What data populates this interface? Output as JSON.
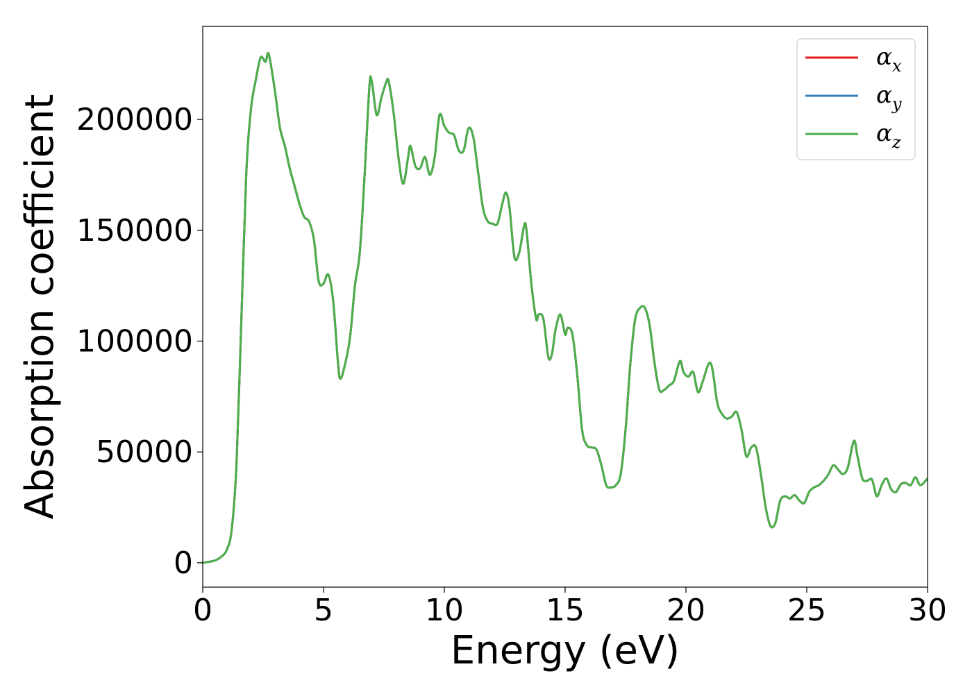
{
  "chart_data": {
    "type": "line",
    "title": "",
    "xlabel": "Energy (eV)",
    "ylabel": "Absorption coefficient",
    "xlim": [
      0,
      30
    ],
    "ylim": [
      -11000,
      242000
    ],
    "xticks": [
      0,
      5,
      10,
      15,
      20,
      25,
      30
    ],
    "xtick_labels": [
      "0",
      "5",
      "10",
      "15",
      "20",
      "25",
      "30"
    ],
    "yticks": [
      0,
      50000,
      100000,
      150000,
      200000
    ],
    "ytick_labels": [
      "0",
      "50000",
      "100000",
      "150000",
      "200000"
    ],
    "grid": false,
    "legend_position": "top-right",
    "x": [
      0,
      0.5,
      0.8,
      1.0,
      1.2,
      1.4,
      1.6,
      1.8,
      2.0,
      2.2,
      2.4,
      2.6,
      2.7,
      2.8,
      3.0,
      3.2,
      3.4,
      3.6,
      3.8,
      4.0,
      4.2,
      4.4,
      4.6,
      4.8,
      5.0,
      5.2,
      5.4,
      5.6,
      5.7,
      5.9,
      6.1,
      6.3,
      6.5,
      6.7,
      6.9,
      7.0,
      7.2,
      7.4,
      7.6,
      7.7,
      7.9,
      8.1,
      8.3,
      8.5,
      8.6,
      8.8,
      9.0,
      9.2,
      9.4,
      9.6,
      9.8,
      10.0,
      10.2,
      10.4,
      10.6,
      10.8,
      11.0,
      11.2,
      11.4,
      11.6,
      11.8,
      12.0,
      12.2,
      12.4,
      12.55,
      12.7,
      12.9,
      13.1,
      13.3,
      13.4,
      13.6,
      13.8,
      13.9,
      14.1,
      14.3,
      14.45,
      14.6,
      14.8,
      15.0,
      15.1,
      15.3,
      15.5,
      15.7,
      15.9,
      16.1,
      16.3,
      16.5,
      16.7,
      16.9,
      17.1,
      17.3,
      17.5,
      17.7,
      17.9,
      18.1,
      18.3,
      18.5,
      18.7,
      18.9,
      19.1,
      19.3,
      19.5,
      19.75,
      19.9,
      20.1,
      20.3,
      20.5,
      20.7,
      20.95,
      21.1,
      21.3,
      21.5,
      21.7,
      21.9,
      22.1,
      22.3,
      22.5,
      22.7,
      22.9,
      23.1,
      23.3,
      23.5,
      23.7,
      23.9,
      24.1,
      24.3,
      24.5,
      24.7,
      24.9,
      25.1,
      25.3,
      25.5,
      25.7,
      25.9,
      26.1,
      26.3,
      26.5,
      26.7,
      26.95,
      27.1,
      27.3,
      27.5,
      27.7,
      27.9,
      28.1,
      28.3,
      28.5,
      28.7,
      28.9,
      29.1,
      29.3,
      29.5,
      29.7,
      30.0
    ],
    "series": [
      {
        "name": "α_x",
        "color": "#e41a1c",
        "values": [
          0,
          1000,
          3000,
          6000,
          15000,
          45000,
          110000,
          175000,
          205000,
          218000,
          228000,
          226000,
          230000,
          226000,
          212000,
          196000,
          188000,
          178000,
          170000,
          162000,
          156000,
          154000,
          146000,
          127000,
          126000,
          130000,
          118000,
          90000,
          83000,
          90000,
          102000,
          125000,
          140000,
          175000,
          215000,
          217000,
          202000,
          210000,
          217000,
          217000,
          203000,
          183000,
          171000,
          183000,
          188000,
          179000,
          178000,
          183000,
          175000,
          183000,
          202000,
          197000,
          194000,
          193000,
          186000,
          186000,
          196000,
          192000,
          176000,
          160000,
          154000,
          153000,
          153000,
          162000,
          167000,
          160000,
          138000,
          140000,
          152000,
          150000,
          126000,
          110000,
          112000,
          110000,
          93000,
          94000,
          105000,
          112000,
          103000,
          106000,
          103000,
          85000,
          60000,
          53000,
          52000,
          51000,
          44000,
          35000,
          34000,
          35000,
          40000,
          60000,
          90000,
          110000,
          115000,
          115000,
          107000,
          90000,
          78000,
          78000,
          80000,
          82000,
          91000,
          86000,
          84000,
          86000,
          77000,
          82000,
          90000,
          87000,
          72000,
          67000,
          65000,
          66000,
          68000,
          60000,
          48000,
          52000,
          52000,
          40000,
          25000,
          16500,
          18000,
          28000,
          30000,
          29000,
          30500,
          28000,
          27000,
          32000,
          34000,
          35000,
          37000,
          40000,
          44000,
          42000,
          40000,
          43000,
          55000,
          48000,
          38000,
          37000,
          37500,
          30000,
          35000,
          38000,
          33000,
          32000,
          35500,
          36000,
          35000,
          38500,
          35000,
          38000
        ]
      },
      {
        "name": "α_y",
        "color": "#377eb8",
        "values": [
          0,
          1000,
          3000,
          6000,
          15000,
          45000,
          110000,
          175000,
          205000,
          218000,
          228000,
          226000,
          230000,
          226000,
          212000,
          196000,
          188000,
          178000,
          170000,
          162000,
          156000,
          154000,
          146000,
          127000,
          126000,
          130000,
          118000,
          90000,
          83000,
          90000,
          102000,
          125000,
          140000,
          175000,
          215000,
          217000,
          202000,
          210000,
          217000,
          217000,
          203000,
          183000,
          171000,
          183000,
          188000,
          179000,
          178000,
          183000,
          175000,
          183000,
          202000,
          197000,
          194000,
          193000,
          186000,
          186000,
          196000,
          192000,
          176000,
          160000,
          154000,
          153000,
          153000,
          162000,
          167000,
          160000,
          138000,
          140000,
          152000,
          150000,
          126000,
          110000,
          112000,
          110000,
          93000,
          94000,
          105000,
          112000,
          103000,
          106000,
          103000,
          85000,
          60000,
          53000,
          52000,
          51000,
          44000,
          35000,
          34000,
          35000,
          40000,
          60000,
          90000,
          110000,
          115000,
          115000,
          107000,
          90000,
          78000,
          78000,
          80000,
          82000,
          91000,
          86000,
          84000,
          86000,
          77000,
          82000,
          90000,
          87000,
          72000,
          67000,
          65000,
          66000,
          68000,
          60000,
          48000,
          52000,
          52000,
          40000,
          25000,
          16500,
          18000,
          28000,
          30000,
          29000,
          30500,
          28000,
          27000,
          32000,
          34000,
          35000,
          37000,
          40000,
          44000,
          42000,
          40000,
          43000,
          55000,
          48000,
          38000,
          37000,
          37500,
          30000,
          35000,
          38000,
          33000,
          32000,
          35500,
          36000,
          35000,
          38500,
          35000,
          38000
        ]
      },
      {
        "name": "α_z",
        "color": "#4daf4a",
        "values": [
          0,
          1000,
          3000,
          6000,
          15000,
          45000,
          110000,
          175000,
          205000,
          218000,
          228000,
          226000,
          230000,
          226000,
          212000,
          196000,
          188000,
          178000,
          170000,
          162000,
          156000,
          154000,
          146000,
          127000,
          126000,
          130000,
          118000,
          90000,
          83000,
          90000,
          102000,
          125000,
          140000,
          175000,
          215000,
          217000,
          202000,
          210000,
          217000,
          217000,
          203000,
          183000,
          171000,
          183000,
          188000,
          179000,
          178000,
          183000,
          175000,
          183000,
          202000,
          197000,
          194000,
          193000,
          186000,
          186000,
          196000,
          192000,
          176000,
          160000,
          154000,
          153000,
          153000,
          162000,
          167000,
          160000,
          138000,
          140000,
          152000,
          150000,
          126000,
          110000,
          112000,
          110000,
          93000,
          94000,
          105000,
          112000,
          103000,
          106000,
          103000,
          85000,
          60000,
          53000,
          52000,
          51000,
          44000,
          35000,
          34000,
          35000,
          40000,
          60000,
          90000,
          110000,
          115000,
          115000,
          107000,
          90000,
          78000,
          78000,
          80000,
          82000,
          91000,
          86000,
          84000,
          86000,
          77000,
          82000,
          90000,
          87000,
          72000,
          67000,
          65000,
          66000,
          68000,
          60000,
          48000,
          52000,
          52000,
          40000,
          25000,
          16500,
          18000,
          28000,
          30000,
          29000,
          30500,
          28000,
          27000,
          32000,
          34000,
          35000,
          37000,
          40000,
          44000,
          42000,
          40000,
          43000,
          55000,
          48000,
          38000,
          37000,
          37500,
          30000,
          35000,
          38000,
          33000,
          32000,
          35500,
          36000,
          35000,
          38500,
          35000,
          38000
        ]
      }
    ],
    "legend": [
      {
        "symbol": "α",
        "sub": "x",
        "color": "#e41a1c"
      },
      {
        "symbol": "α",
        "sub": "y",
        "color": "#377eb8"
      },
      {
        "symbol": "α",
        "sub": "z",
        "color": "#4daf4a"
      }
    ]
  }
}
